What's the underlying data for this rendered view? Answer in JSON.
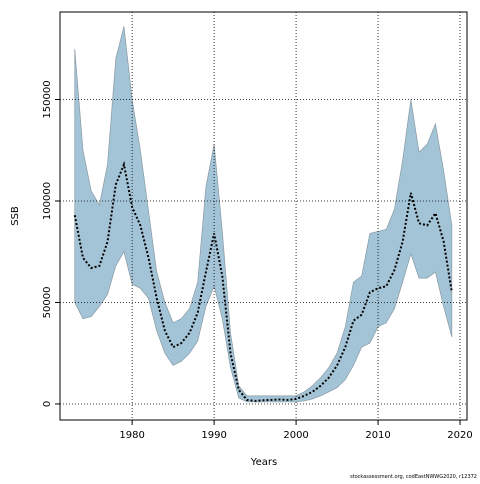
{
  "chart_data": {
    "type": "line",
    "ylabel": "SSB",
    "xlabel": "Years",
    "note": "stockassessment.org, codEastNWWG2020, r12372",
    "x": [
      1973,
      1974,
      1975,
      1976,
      1977,
      1978,
      1979,
      1980,
      1981,
      1982,
      1983,
      1984,
      1985,
      1986,
      1987,
      1988,
      1989,
      1990,
      1991,
      1992,
      1993,
      1994,
      1995,
      1996,
      1997,
      1998,
      1999,
      2000,
      2001,
      2002,
      2003,
      2004,
      2005,
      2006,
      2007,
      2008,
      2009,
      2010,
      2011,
      2012,
      2013,
      2014,
      2015,
      2016,
      2017,
      2018,
      2019
    ],
    "series": [
      {
        "color": "#000000",
        "values": [
          93000,
          72000,
          67000,
          68000,
          80000,
          108000,
          118000,
          97000,
          88000,
          72000,
          52000,
          36000,
          28000,
          30000,
          35000,
          45000,
          65000,
          84000,
          63000,
          25000,
          7000,
          2000,
          1500,
          1800,
          2000,
          2200,
          2000,
          2500,
          4000,
          6000,
          9000,
          13000,
          19000,
          28000,
          41000,
          44000,
          55000,
          57000,
          58000,
          66000,
          80000,
          104000,
          89000,
          88000,
          94000,
          80000,
          55000
        ]
      }
    ],
    "band": {
      "color": "#a3c4d6",
      "upper": [
        175000,
        125000,
        105000,
        98000,
        118000,
        170000,
        186000,
        150000,
        125000,
        95000,
        65000,
        50000,
        40000,
        42000,
        47000,
        60000,
        107000,
        128000,
        85000,
        35000,
        9000,
        4000,
        4000,
        4000,
        4000,
        4000,
        4000,
        4000,
        6000,
        9000,
        13000,
        18000,
        25000,
        38000,
        60000,
        63000,
        84000,
        85000,
        86000,
        96000,
        120000,
        150000,
        124000,
        128000,
        138000,
        115000,
        88000
      ],
      "lower": [
        50000,
        42000,
        43000,
        48000,
        54000,
        68000,
        75000,
        59000,
        57000,
        52000,
        36000,
        25000,
        19000,
        21000,
        25000,
        31000,
        48000,
        58000,
        42000,
        18000,
        3000,
        1000,
        1000,
        1000,
        1000,
        1000,
        1000,
        1000,
        1500,
        2500,
        4000,
        6000,
        8000,
        12000,
        19000,
        28000,
        30000,
        38000,
        40000,
        47000,
        60000,
        74000,
        62000,
        62000,
        65000,
        48000,
        33000
      ]
    },
    "xlim": [
      1971.2,
      2020.85
    ],
    "xticks": [
      1980,
      1990,
      2000,
      2010,
      2020
    ],
    "ylim": [
      -7900,
      193100
    ],
    "yticks": [
      0,
      50000,
      100000,
      150000
    ],
    "grid": true
  }
}
